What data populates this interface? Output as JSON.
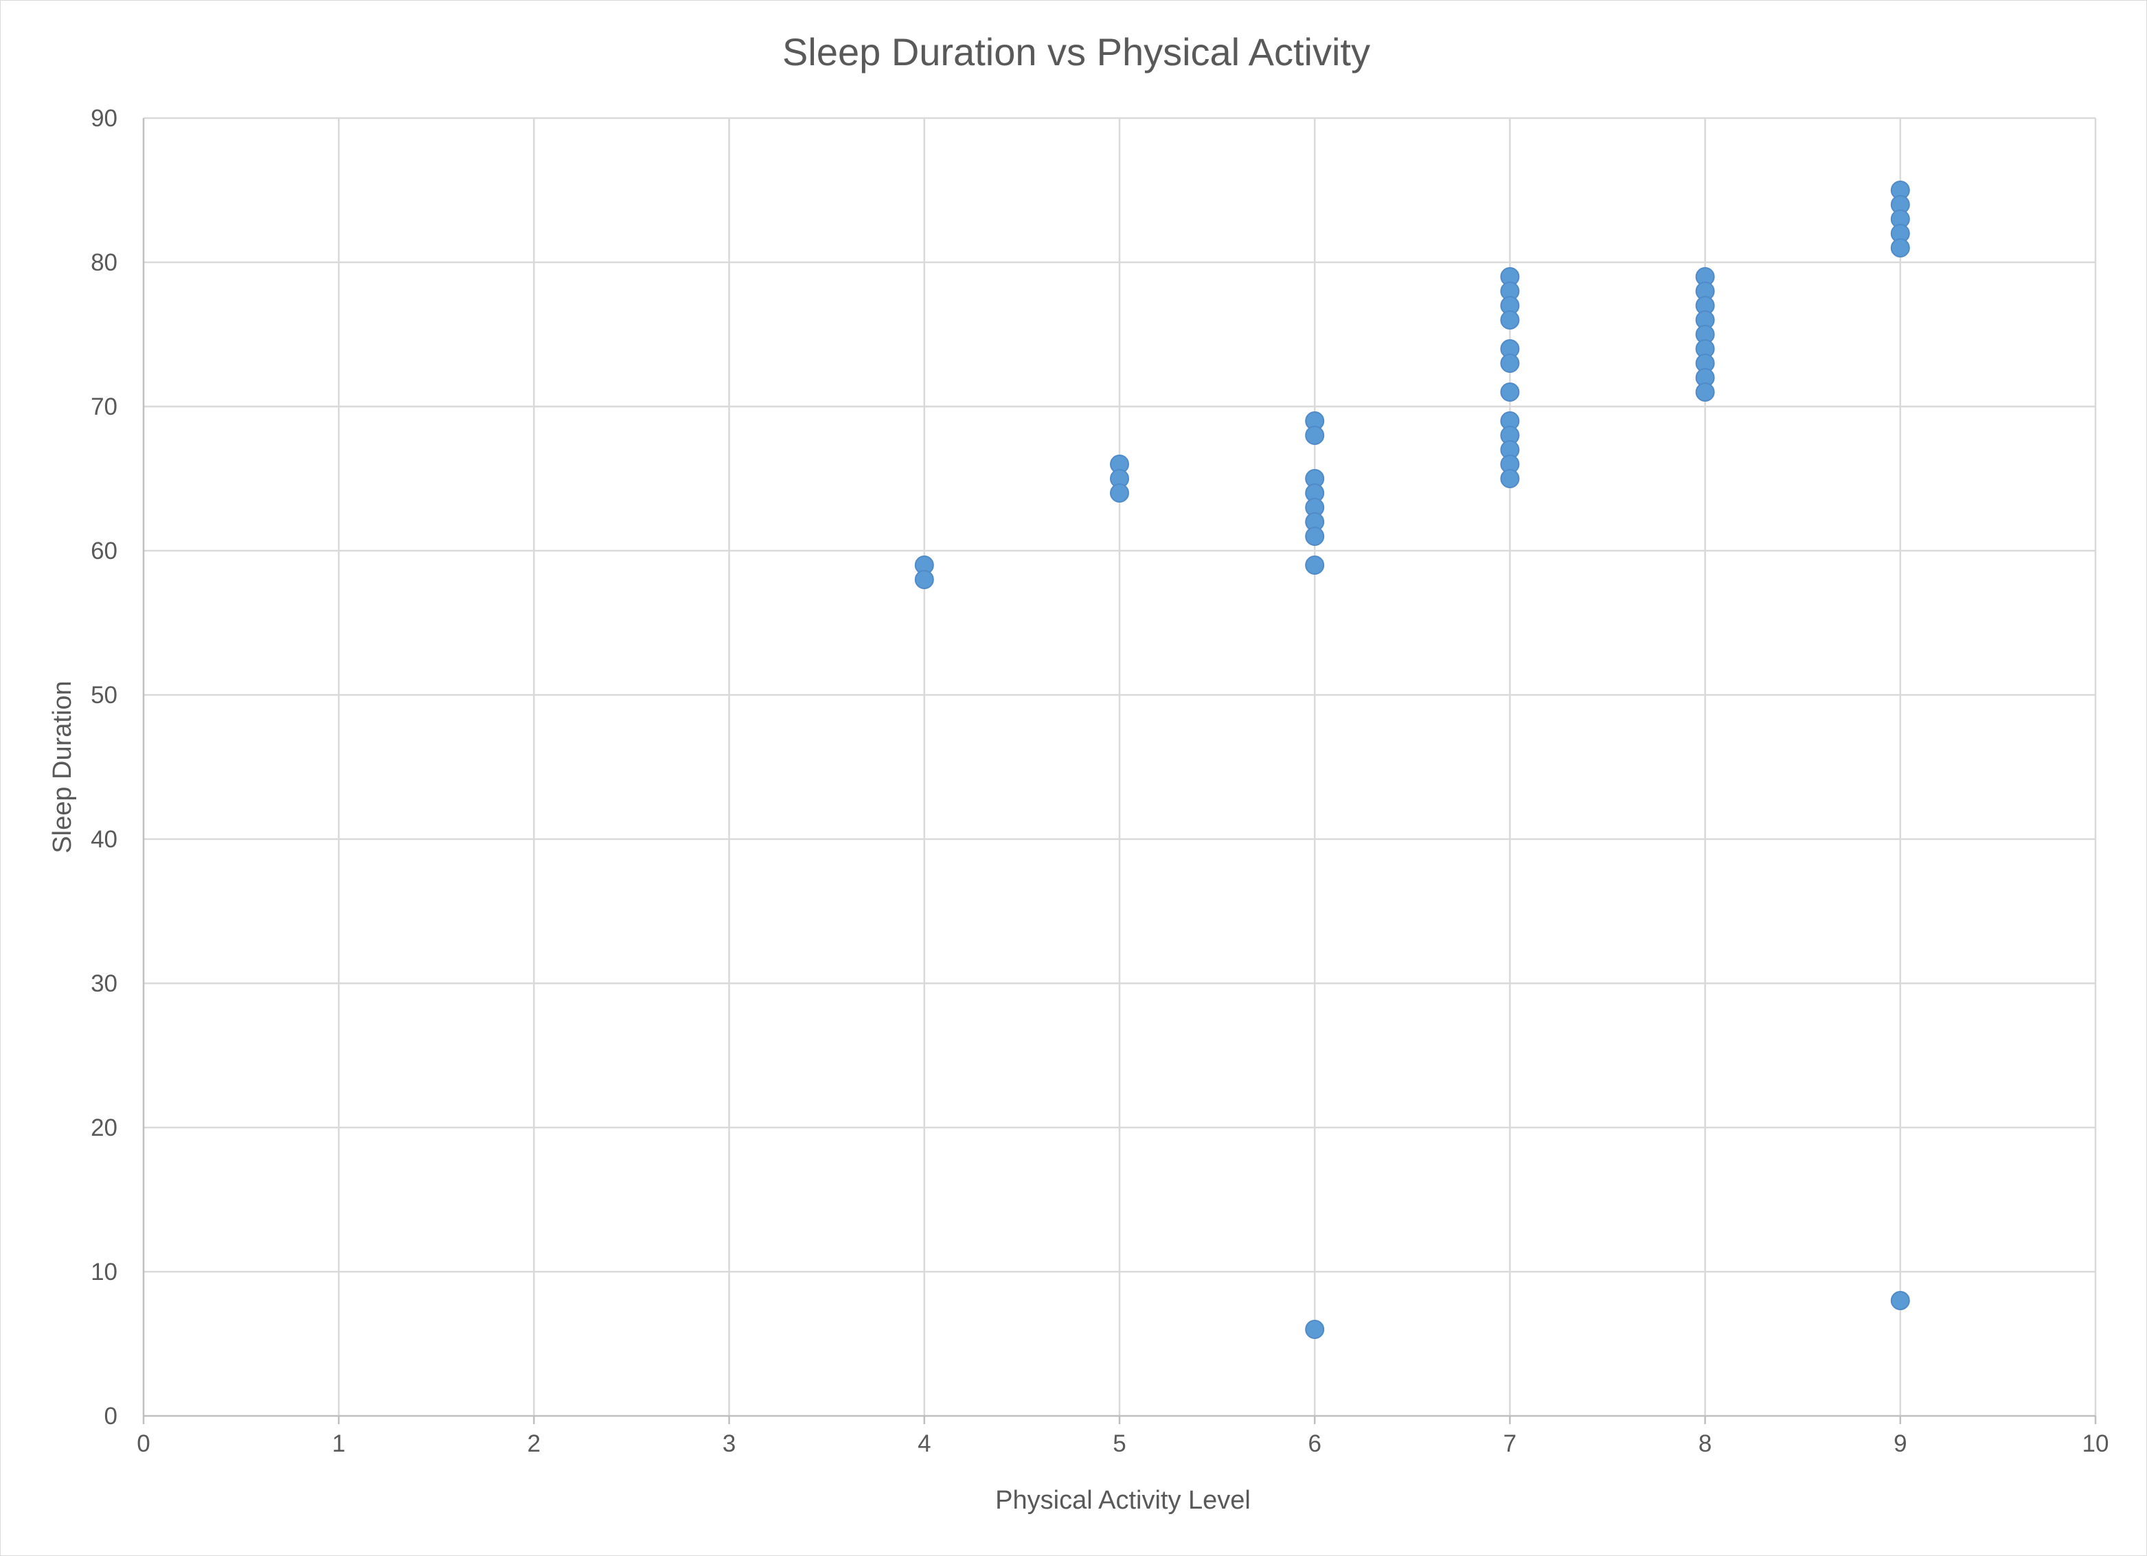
{
  "chart_data": {
    "type": "scatter",
    "title": "Sleep Duration vs Physical Activity",
    "xlabel": "Physical Activity Level",
    "ylabel": "Sleep Duration",
    "xlim": [
      0,
      10
    ],
    "ylim": [
      0,
      90
    ],
    "x_ticks": [
      "0",
      "1",
      "2",
      "3",
      "4",
      "5",
      "6",
      "7",
      "8",
      "9",
      "10"
    ],
    "y_ticks": [
      "0",
      "10",
      "20",
      "30",
      "40",
      "50",
      "60",
      "70",
      "80",
      "90"
    ],
    "grid": true,
    "legend": "none",
    "marker_color": "#5b9bd5",
    "points": [
      {
        "x": 4,
        "y": 59
      },
      {
        "x": 4,
        "y": 58
      },
      {
        "x": 5,
        "y": 66
      },
      {
        "x": 5,
        "y": 65
      },
      {
        "x": 5,
        "y": 64
      },
      {
        "x": 6,
        "y": 69
      },
      {
        "x": 6,
        "y": 68
      },
      {
        "x": 6,
        "y": 65
      },
      {
        "x": 6,
        "y": 64
      },
      {
        "x": 6,
        "y": 63
      },
      {
        "x": 6,
        "y": 62
      },
      {
        "x": 6,
        "y": 61
      },
      {
        "x": 6,
        "y": 59
      },
      {
        "x": 6,
        "y": 6
      },
      {
        "x": 7,
        "y": 79
      },
      {
        "x": 7,
        "y": 78
      },
      {
        "x": 7,
        "y": 77
      },
      {
        "x": 7,
        "y": 76
      },
      {
        "x": 7,
        "y": 74
      },
      {
        "x": 7,
        "y": 73
      },
      {
        "x": 7,
        "y": 71
      },
      {
        "x": 7,
        "y": 69
      },
      {
        "x": 7,
        "y": 68
      },
      {
        "x": 7,
        "y": 67
      },
      {
        "x": 7,
        "y": 66
      },
      {
        "x": 7,
        "y": 65
      },
      {
        "x": 8,
        "y": 79
      },
      {
        "x": 8,
        "y": 78
      },
      {
        "x": 8,
        "y": 77
      },
      {
        "x": 8,
        "y": 76
      },
      {
        "x": 8,
        "y": 75
      },
      {
        "x": 8,
        "y": 74
      },
      {
        "x": 8,
        "y": 73
      },
      {
        "x": 8,
        "y": 72
      },
      {
        "x": 8,
        "y": 71
      },
      {
        "x": 9,
        "y": 85
      },
      {
        "x": 9,
        "y": 84
      },
      {
        "x": 9,
        "y": 83
      },
      {
        "x": 9,
        "y": 82
      },
      {
        "x": 9,
        "y": 81
      },
      {
        "x": 9,
        "y": 8
      }
    ]
  }
}
